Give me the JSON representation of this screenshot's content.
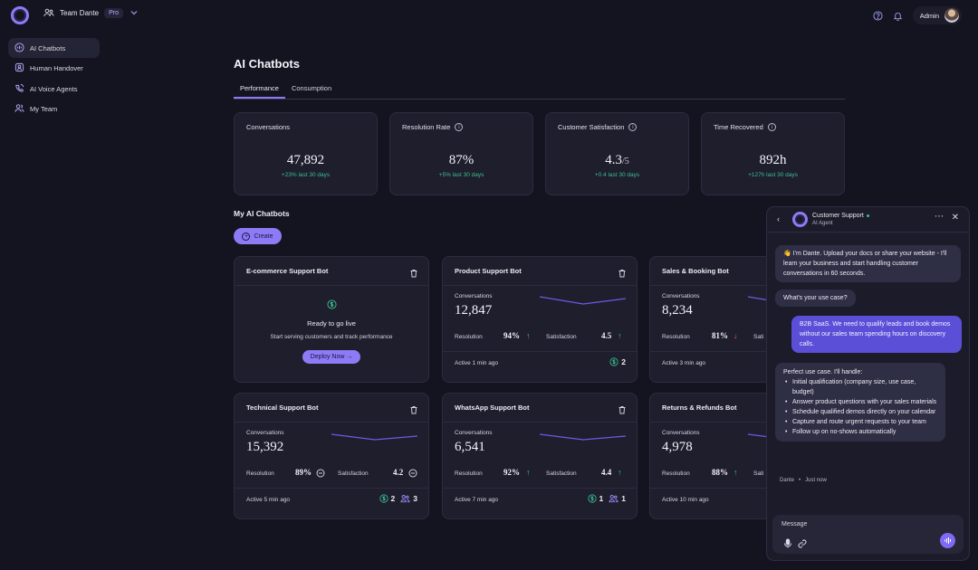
{
  "header": {
    "team_name": "Team Dante",
    "plan_badge": "Pro",
    "user_name": "Admin"
  },
  "sidebar": {
    "items": [
      {
        "label": "AI Chatbots",
        "icon": "chatbot-icon",
        "active": true
      },
      {
        "label": "Human Handover",
        "icon": "handover-icon",
        "active": false
      },
      {
        "label": "AI Voice Agents",
        "icon": "phone-icon",
        "active": false
      },
      {
        "label": "My Team",
        "icon": "team-icon",
        "active": false
      }
    ]
  },
  "main": {
    "title": "AI Chatbots",
    "tabs": [
      {
        "label": "Performance",
        "active": true
      },
      {
        "label": "Consumption",
        "active": false
      }
    ],
    "stats": [
      {
        "label": "Conversations",
        "value": "47,892",
        "suffix": "",
        "change": "+23% last 30 days",
        "info": false
      },
      {
        "label": "Resolution Rate",
        "value": "87%",
        "suffix": "",
        "change": "+5% last 30 days",
        "info": true
      },
      {
        "label": "Customer Satisfaction",
        "value": "4.3",
        "suffix": "/5",
        "change": "+0.4 last 30 days",
        "info": true
      },
      {
        "label": "Time Recovered",
        "value": "892h",
        "suffix": "",
        "change": "+127h last 30 days",
        "info": true
      }
    ],
    "section_title": "My AI Chatbots",
    "create_label": "Create",
    "bots": [
      {
        "name": "E-commerce Support Bot",
        "empty": true,
        "ready_title": "Ready to go live",
        "ready_sub": "Start serving customers and track performance",
        "deploy_label": "Deploy Now →"
      },
      {
        "name": "Product Support Bot",
        "conversations_label": "Conversations",
        "conversations": "12,847",
        "resolution_label": "Resolution",
        "resolution": "94%",
        "resolution_trend": "up",
        "satisfaction_label": "Satisfaction",
        "satisfaction": "4.5",
        "satisfaction_trend": "up",
        "active": "Active 1 min ago",
        "handover_count": "2",
        "escalation_count": ""
      },
      {
        "name": "Sales & Booking Bot",
        "conversations_label": "Conversations",
        "conversations": "8,234",
        "resolution_label": "Resolution",
        "resolution": "81%",
        "resolution_trend": "down",
        "satisfaction_label": "Sati",
        "satisfaction": "",
        "satisfaction_trend": "",
        "active": "Active 3 min ago",
        "handover_count": "",
        "escalation_count": ""
      },
      {
        "name": "Technical Support Bot",
        "conversations_label": "Conversations",
        "conversations": "15,392",
        "resolution_label": "Resolution",
        "resolution": "89%",
        "resolution_trend": "neutral",
        "satisfaction_label": "Satisfaction",
        "satisfaction": "4.2",
        "satisfaction_trend": "neutral",
        "active": "Active 5 min ago",
        "handover_count": "2",
        "escalation_count": "3"
      },
      {
        "name": "WhatsApp Support Bot",
        "conversations_label": "Conversations",
        "conversations": "6,541",
        "resolution_label": "Resolution",
        "resolution": "92%",
        "resolution_trend": "up",
        "satisfaction_label": "Satisfaction",
        "satisfaction": "4.4",
        "satisfaction_trend": "up",
        "active": "Active 7 min ago",
        "handover_count": "1",
        "escalation_count": "1"
      },
      {
        "name": "Returns & Refunds Bot",
        "conversations_label": "Conversations",
        "conversations": "4,978",
        "resolution_label": "Resolution",
        "resolution": "88%",
        "resolution_trend": "up",
        "satisfaction_label": "Sati",
        "satisfaction": "",
        "satisfaction_trend": "",
        "active": "Active 10 min ago",
        "handover_count": "",
        "escalation_count": ""
      }
    ]
  },
  "chat": {
    "title": "Customer Support",
    "subtitle": "AI Agent",
    "status_color": "#3dbf8f",
    "messages": [
      {
        "from": "bot",
        "text": "👋 I'm Dante. Upload your docs or share your website - I'll learn your business and start handling customer conversations in 60 seconds."
      },
      {
        "from": "bot",
        "text": "What's your use case?"
      },
      {
        "from": "me",
        "text": "B2B SaaS. We need to qualify leads and book demos without our sales team spending hours on discovery calls."
      },
      {
        "from": "bot",
        "text": "Perfect use case. I'll handle:",
        "list": [
          "Initial qualification (company size, use case, budget)",
          "Answer product questions with your sales materials",
          "Schedule qualified demos directly on your calendar",
          "Capture and route urgent requests to your team",
          "Follow up on no-shows automatically"
        ]
      }
    ],
    "meta_author": "Dante",
    "meta_time": "Just now",
    "input_placeholder": "Message"
  },
  "colors": {
    "accent": "#8b7cf6",
    "positive": "#3dbf8f",
    "negative": "#ef5a5a",
    "background": "#141421",
    "card": "#1e1e2d"
  }
}
